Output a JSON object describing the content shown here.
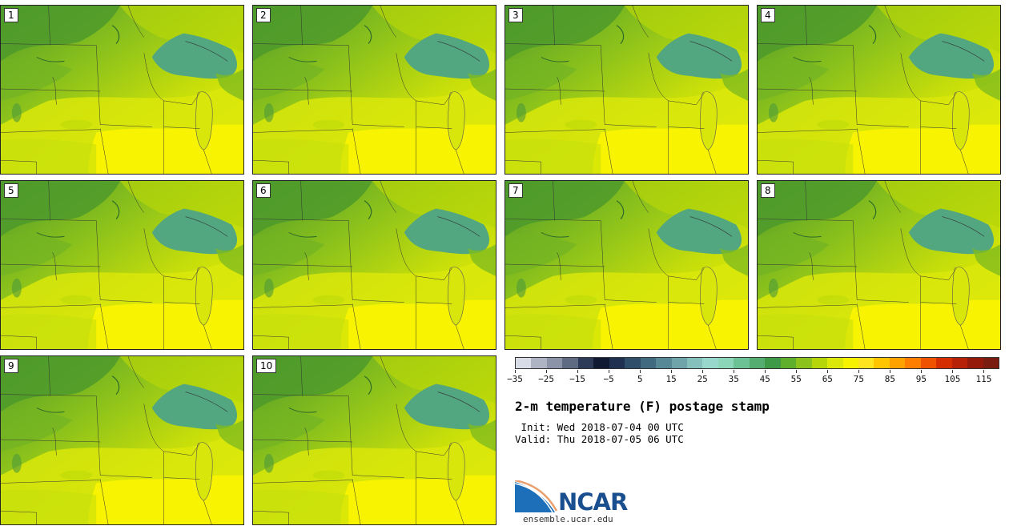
{
  "panels": [
    {
      "label": "1"
    },
    {
      "label": "2"
    },
    {
      "label": "3"
    },
    {
      "label": "4"
    },
    {
      "label": "5"
    },
    {
      "label": "6"
    },
    {
      "label": "7"
    },
    {
      "label": "8"
    },
    {
      "label": "9"
    },
    {
      "label": "10"
    }
  ],
  "colorbar": {
    "colors": [
      "#d8dce6",
      "#aeb4c4",
      "#8a93a8",
      "#5f6a83",
      "#2d3a58",
      "#101a33",
      "#1f3050",
      "#2f4e6a",
      "#3f6a80",
      "#568896",
      "#6fa5aa",
      "#86c0bc",
      "#98d8cc",
      "#8bd6b8",
      "#6cc195",
      "#55ad6f",
      "#3f9a47",
      "#5fae2c",
      "#8bc21c",
      "#b6d609",
      "#dbe80a",
      "#f6f200",
      "#ffe41e",
      "#ffc600",
      "#ffa200",
      "#ff7e00",
      "#ef5300",
      "#d42e02",
      "#b62108",
      "#961a0c",
      "#7a1c10"
    ],
    "tick_labels": [
      "−35",
      "−25",
      "−15",
      "−5",
      "5",
      "15",
      "25",
      "35",
      "45",
      "55",
      "65",
      "75",
      "85",
      "95",
      "105",
      "115"
    ]
  },
  "title": "2-m temperature (F) postage stamp",
  "init_line": " Init: Wed 2018-07-04 00 UTC",
  "valid_line": "Valid: Thu 2018-07-05 06 UTC",
  "logo": {
    "name": "NCAR",
    "site": "ensemble.ucar.edu"
  }
}
